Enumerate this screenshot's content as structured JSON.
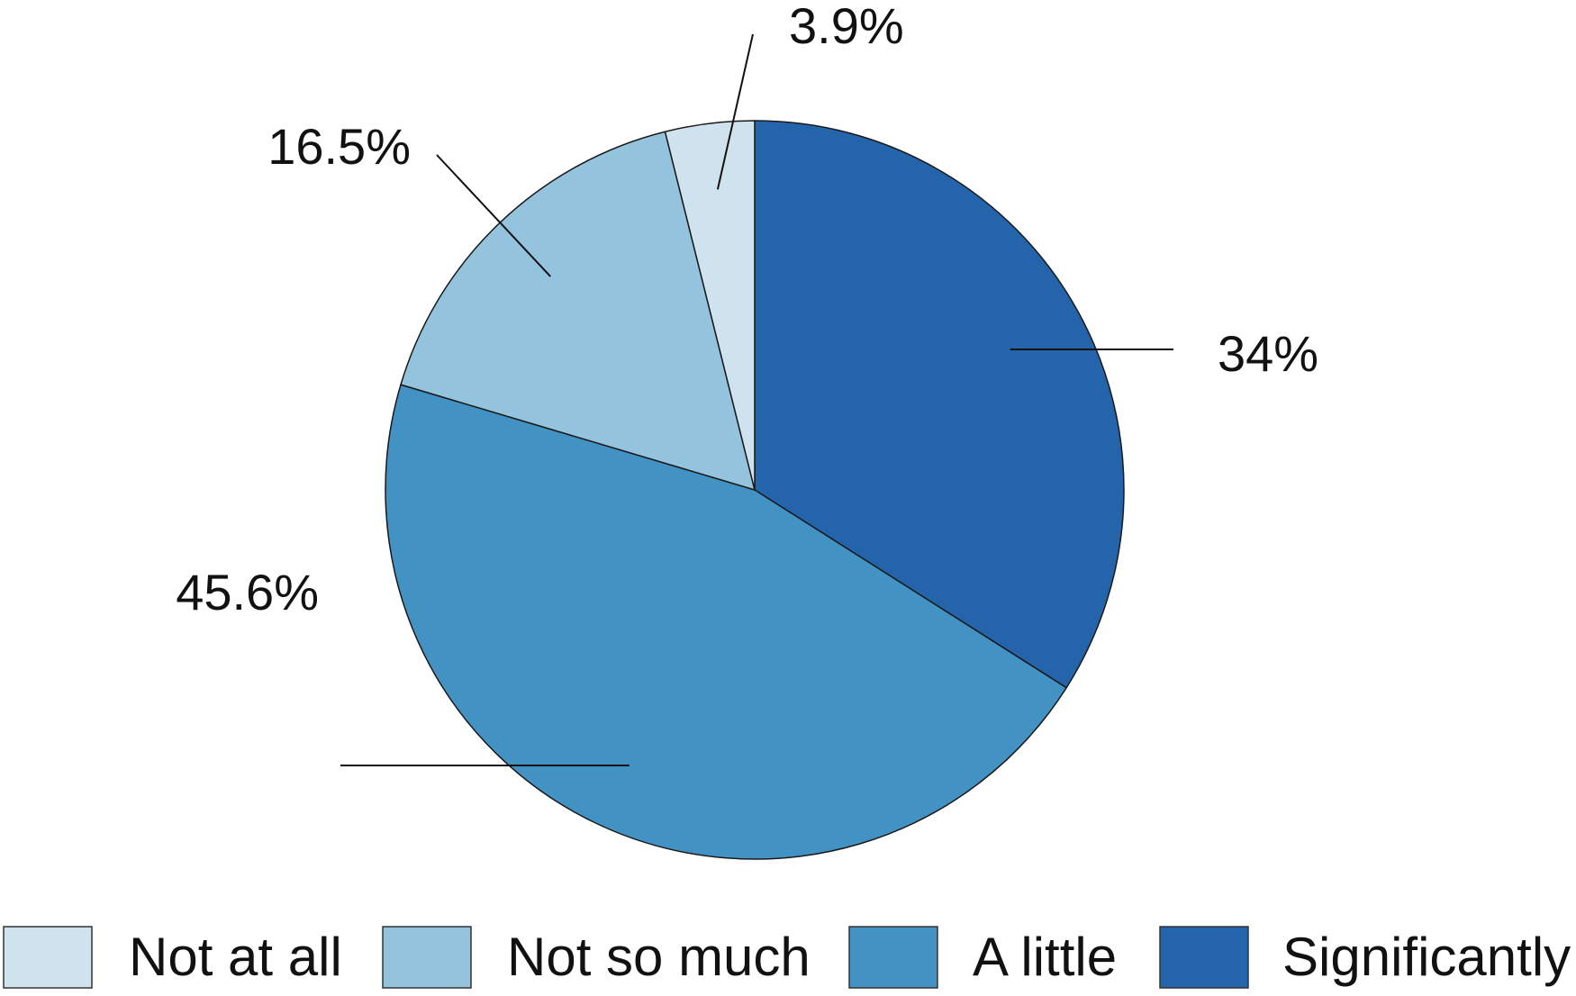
{
  "chart_data": {
    "type": "pie",
    "title": "",
    "categories": [
      "Not at all",
      "Not so much",
      "A little",
      "Significantly"
    ],
    "values": [
      3.9,
      16.5,
      45.6,
      34
    ],
    "labels": [
      "3.9%",
      "16.5%",
      "45.6%",
      "34%"
    ],
    "colors": [
      "#cfe3ef",
      "#94c4dd",
      "#4292c4",
      "#2364aa"
    ],
    "start_angle_deg": 0,
    "direction": "clockwise_from_top_with_last_category_first",
    "legend_position": "bottom"
  }
}
